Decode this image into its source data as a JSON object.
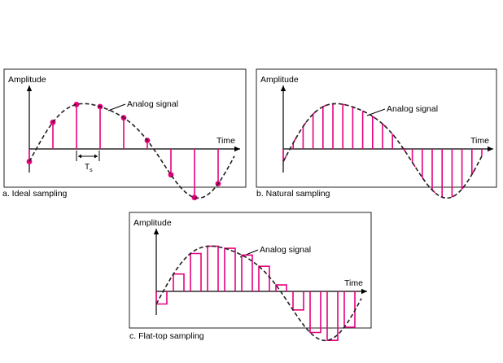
{
  "panels": [
    {
      "id": "ideal",
      "caption": "a. Ideal sampling",
      "ylabel": "Amplitude",
      "xlabel": "Time",
      "curve_label": "Analog signal",
      "period_label": "T",
      "period_sub": "s"
    },
    {
      "id": "natural",
      "caption": "b. Natural sampling",
      "ylabel": "Amplitude",
      "xlabel": "Time",
      "curve_label": "Analog signal"
    },
    {
      "id": "flattop",
      "caption": "c. Flat-top sampling",
      "ylabel": "Amplitude",
      "xlabel": "Time",
      "curve_label": "Analog signal"
    }
  ],
  "colors": {
    "sample": "#e6007e",
    "analog": "#231f20",
    "frame": "#231f20"
  }
}
